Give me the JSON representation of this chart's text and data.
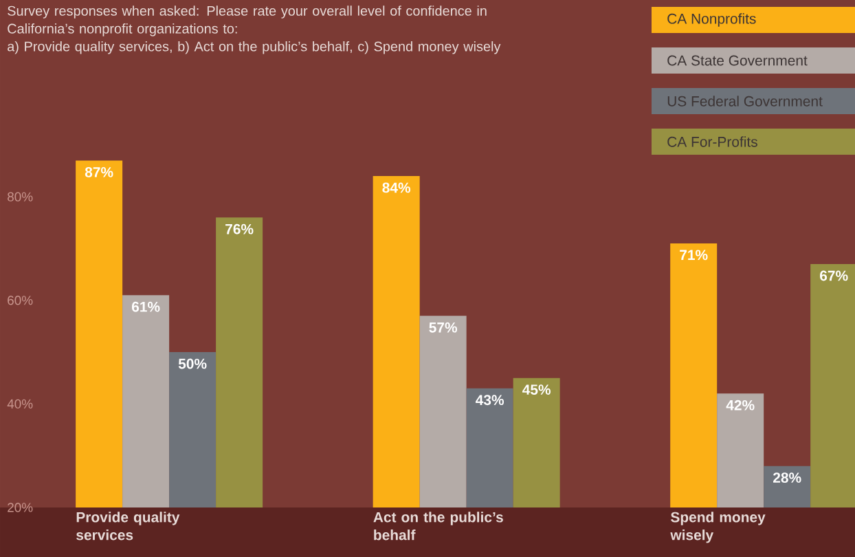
{
  "chart_data": {
    "type": "bar",
    "title": "Survey responses when asked: Please rate your overall level of confidence in California’s nonprofit organizations to:",
    "subtitle": "a) Provide quality services, b) Act on the public’s behalf, c) Spend money wisely",
    "categories": [
      "Provide quality services",
      "Act on the public’s behalf",
      "Spend money wisely"
    ],
    "series": [
      {
        "name": "CA Nonprofits",
        "color": "#fbb016",
        "values": [
          87,
          84,
          71
        ],
        "value_labels": [
          "87%",
          "84%",
          "71%"
        ]
      },
      {
        "name": "CA State Government",
        "color": "#b4aba7",
        "values": [
          61,
          57,
          42
        ],
        "value_labels": [
          "61%",
          "57%",
          "42%"
        ]
      },
      {
        "name": "US Federal Government",
        "color": "#6e737a",
        "values": [
          50,
          43,
          28
        ],
        "value_labels": [
          "50%",
          "43%",
          "28%"
        ]
      },
      {
        "name": "CA For-Profits",
        "color": "#979142",
        "values": [
          76,
          45,
          67
        ],
        "value_labels": [
          "76%",
          "45%",
          "67%"
        ]
      }
    ],
    "ylim": [
      20,
      118
    ],
    "yticks": [
      {
        "value": 20,
        "label": "20%"
      },
      {
        "value": 40,
        "label": "40%"
      },
      {
        "value": 60,
        "label": "60%"
      },
      {
        "value": 80,
        "label": "80%"
      }
    ],
    "legend": "top right"
  }
}
